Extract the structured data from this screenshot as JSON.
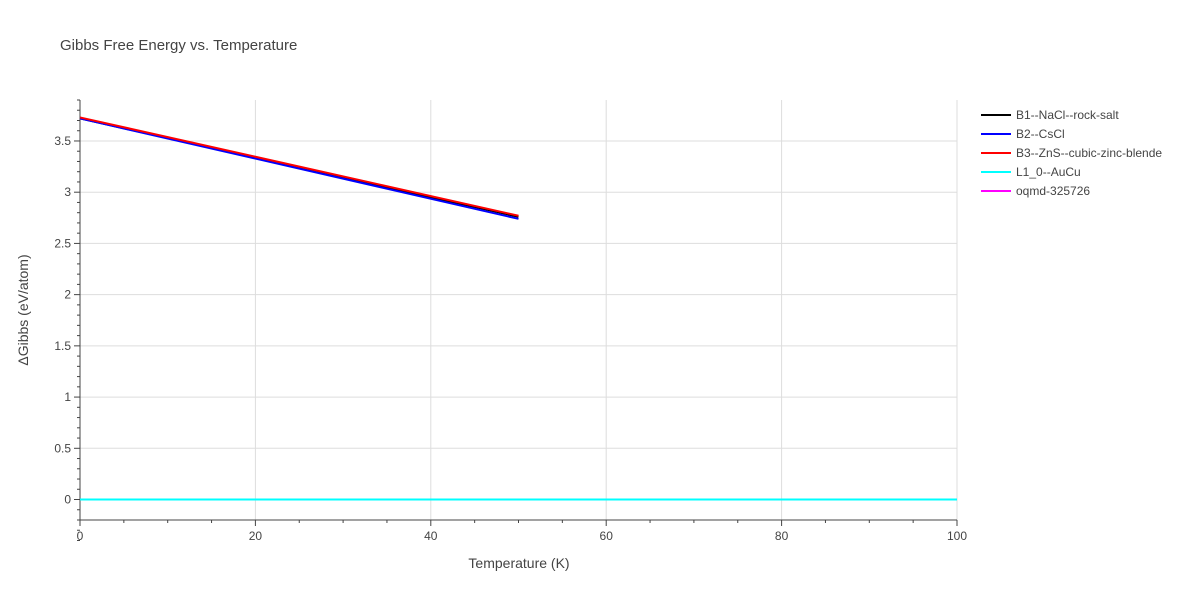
{
  "chart_data": {
    "type": "line",
    "title": "Gibbs Free Energy vs. Temperature",
    "xlabel": "Temperature (K)",
    "ylabel": "ΔGibbs (eV/atom)",
    "xlim": [
      0,
      100
    ],
    "ylim": [
      -0.2,
      3.9
    ],
    "xticks": [
      0,
      20,
      40,
      60,
      80,
      100
    ],
    "xtick_labels": [
      "0",
      "20",
      "40",
      "60",
      "80",
      "100"
    ],
    "yticks": [
      0,
      0.5,
      1,
      1.5,
      2,
      2.5,
      3,
      3.5
    ],
    "ytick_labels": [
      "0",
      "0.5",
      "1",
      "1.5",
      "2",
      "2.5",
      "3",
      "3.5"
    ],
    "grid": true,
    "legend_position": "top-right outside",
    "series": [
      {
        "name": "B1--NaCl--rock-salt",
        "color": "#000000",
        "x": [
          0,
          50
        ],
        "y": [
          3.72,
          2.76
        ]
      },
      {
        "name": "B2--CsCl",
        "color": "#0000ff",
        "x": [
          0,
          50
        ],
        "y": [
          3.72,
          2.74
        ]
      },
      {
        "name": "B3--ZnS--cubic-zinc-blende",
        "color": "#ff0000",
        "x": [
          0,
          50
        ],
        "y": [
          3.73,
          2.77
        ]
      },
      {
        "name": "L1_0--AuCu",
        "color": "#00ffff",
        "x": [
          0,
          100
        ],
        "y": [
          0,
          0
        ]
      },
      {
        "name": "oqmd-325726",
        "color": "#ff00ff",
        "x": [
          0,
          100
        ],
        "y": [
          0,
          0
        ]
      }
    ]
  }
}
